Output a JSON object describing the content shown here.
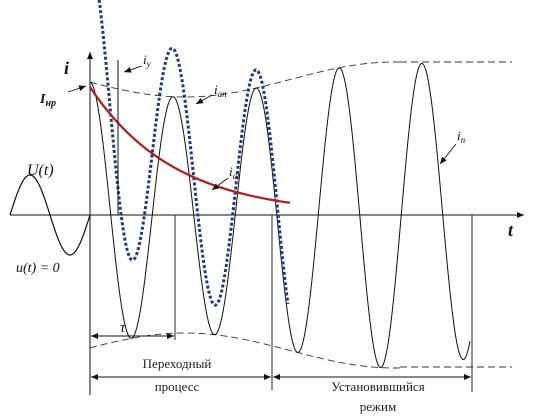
{
  "labels": {
    "axis_i": "i",
    "axis_t": "t",
    "i_y": "i",
    "i_y_sub": "у",
    "i_ap": "i",
    "i_ap_sub": "ап",
    "i_at": "i",
    "i_at_sub": "at",
    "i_p": "i",
    "i_p_sub": "п",
    "i_np": "I",
    "i_np_sub": "нр",
    "u_t": "U(t)",
    "u_zero": "u(t) = 0",
    "tau": "τ",
    "transient_line1": "Переходный",
    "transient_line2": "процесс",
    "steady_line1": "Установившийся",
    "steady_line2": "режим"
  },
  "colors": {
    "curve": "#111111",
    "total_current": "#1f3a8a",
    "aperiodic": "#b01c1c",
    "envelope": "#333333"
  }
}
